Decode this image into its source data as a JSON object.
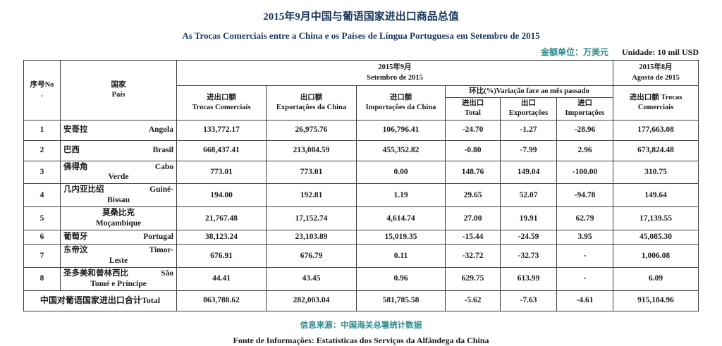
{
  "header": {
    "title_zh": "2015年9月中国与葡语国家进出口商品总值",
    "title_pt": "As Trocas Comerciais entre a China e os Países de Língua Portuguesa em Setembro de 2015",
    "unit_zh": "金额单位：万美元",
    "unit_pt": "Unidade: 10 mil USD"
  },
  "table": {
    "col_no": {
      "line1": "序号No",
      "line2": "."
    },
    "col_country": {
      "zh": "国家",
      "pt": "País"
    },
    "group_sep": {
      "zh": "2015年9月",
      "pt": "Setembro de 2015"
    },
    "col_trocas": {
      "zh": "进出口额",
      "pt": "Trocas Comerciais"
    },
    "col_export": {
      "zh": "出口额",
      "pt": "Exportações da China"
    },
    "col_import": {
      "zh": "进口额",
      "pt": "Importações da China"
    },
    "group_variacao": {
      "label": "环比(%)Variação face ao mês passado"
    },
    "col_var_total": {
      "zh": "进出口",
      "pt": "Total"
    },
    "col_var_export": {
      "zh": "出口",
      "pt": "Exportações"
    },
    "col_var_import": {
      "zh": "进口",
      "pt": "Importações"
    },
    "group_ago": {
      "zh": "2015年8月",
      "pt": "Agosto de 2015"
    },
    "col_ago_trocas": {
      "zh": "进出口额",
      "pt": "Trocas Comerciais"
    },
    "rows": [
      {
        "no": "1",
        "zh": "安哥拉",
        "pt1": "Angola",
        "pt2": "",
        "values": [
          "133,772.17",
          "26,975.76",
          "106,796.41",
          "-24.70",
          "-1.27",
          "-28.96",
          "177,663.08"
        ]
      },
      {
        "no": "2",
        "zh": "巴西",
        "pt1": "Brasil",
        "pt2": "",
        "values": [
          "668,437.41",
          "213,084.59",
          "455,352.82",
          "-0.80",
          "-7.99",
          "2.96",
          "673,824.48"
        ]
      },
      {
        "no": "3",
        "zh": "佛得角",
        "pt1": "Cabo",
        "pt2": "Verde",
        "values": [
          "773.01",
          "773.01",
          "0.00",
          "148.76",
          "149.04",
          "-100.00",
          "310.75"
        ]
      },
      {
        "no": "4",
        "zh": "几内亚比绍",
        "pt1": "Guiné-",
        "pt2": "Bissau",
        "values": [
          "194.00",
          "192.81",
          "1.19",
          "29.65",
          "52.07",
          "-94.78",
          "149.64"
        ]
      },
      {
        "no": "5",
        "zh": "莫桑比克",
        "pt1": "",
        "pt2": "Moçambique",
        "values": [
          "21,767.48",
          "17,152.74",
          "4,614.74",
          "27.00",
          "19.91",
          "62.79",
          "17,139.55"
        ]
      },
      {
        "no": "6",
        "zh": "葡萄牙",
        "pt1": "Portugal",
        "pt2": "",
        "values": [
          "38,123.24",
          "23,103.89",
          "15,019.35",
          "-15.44",
          "-24.59",
          "3.95",
          "45,085.30"
        ]
      },
      {
        "no": "7",
        "zh": "东帝汶",
        "pt1": "Timor-",
        "pt2": "Leste",
        "values": [
          "676.91",
          "676.79",
          "0.11",
          "-32.72",
          "-32.73",
          "-",
          "1,006.08"
        ]
      },
      {
        "no": "8",
        "zh": "圣多美和普林西比",
        "pt1": "São",
        "pt2": "Tomé e Príncipe",
        "values": [
          "44.41",
          "43.45",
          "0.96",
          "629.75",
          "613.99",
          "-",
          "6.09"
        ]
      }
    ],
    "total_row": {
      "label": "中国对葡语国家进出口合计Total",
      "values": [
        "863,788.62",
        "282,003.04",
        "581,785.58",
        "-5.62",
        "-7.63",
        "-4.61",
        "915,184.96"
      ]
    }
  },
  "footer": {
    "source_zh": "信息来源：中国海关总署统计数据",
    "source_pt": "Fonte de Informações: Estatísticas dos Serviços da Alfândega da China"
  },
  "colors": {
    "title_navy": "#17365D",
    "teal_accent": "#2E8B8B",
    "text": "#1a1a1a"
  }
}
